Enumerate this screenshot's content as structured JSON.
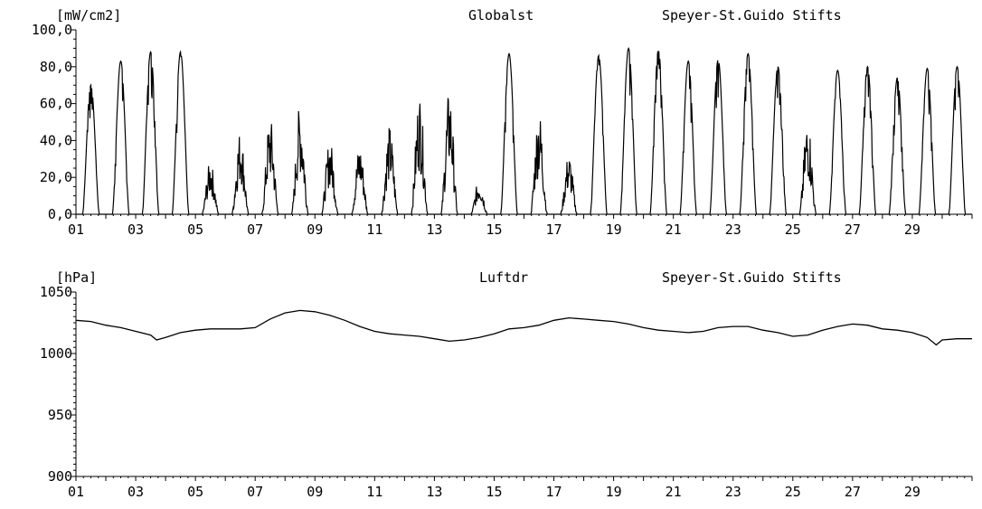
{
  "chart_data": [
    {
      "type": "line",
      "unit": "[mW/cm2]",
      "title": "Globalst",
      "station": "Speyer-St.Guido Stifts",
      "xlim": [
        1,
        31
      ],
      "ylim": [
        0,
        100
      ],
      "yticks": [
        "0,0",
        "20,0",
        "40,0",
        "60,0",
        "80,0",
        "100,0"
      ],
      "xticks": [
        "01",
        "03",
        "05",
        "07",
        "09",
        "11",
        "13",
        "15",
        "17",
        "19",
        "21",
        "23",
        "25",
        "27",
        "29"
      ],
      "daily_peaks": [
        70,
        83,
        88,
        88,
        29,
        46,
        53,
        60,
        41,
        38,
        48,
        66,
        68,
        19,
        87,
        57,
        33,
        86,
        90,
        89,
        83,
        84,
        87,
        80,
        52,
        78,
        80,
        74,
        79,
        80
      ],
      "series": [
        {
          "values": [
            70,
            83,
            88,
            88,
            29,
            46,
            53,
            60,
            41,
            38,
            48,
            66,
            68,
            19,
            87,
            57,
            33,
            86,
            90,
            89,
            83,
            84,
            87,
            80,
            52,
            78,
            80,
            74,
            79,
            80
          ]
        }
      ]
    },
    {
      "type": "line",
      "unit": "[hPa]",
      "title": "Luftdr",
      "station": "Speyer-St.Guido Stifts",
      "xlim": [
        1,
        31
      ],
      "ylim": [
        900,
        1050
      ],
      "yticks": [
        "900",
        "950",
        "1000",
        "1050"
      ],
      "xticks": [
        "01",
        "03",
        "05",
        "07",
        "09",
        "11",
        "13",
        "15",
        "17",
        "19",
        "21",
        "23",
        "25",
        "27",
        "29"
      ],
      "x": [
        1.0,
        1.5,
        2.0,
        2.5,
        3.0,
        3.5,
        3.7,
        4.0,
        4.5,
        5.0,
        5.5,
        6.0,
        6.5,
        7.0,
        7.5,
        8.0,
        8.5,
        9.0,
        9.5,
        10.0,
        10.5,
        11.0,
        11.5,
        12.0,
        12.5,
        13.0,
        13.5,
        14.0,
        14.5,
        15.0,
        15.5,
        16.0,
        16.5,
        17.0,
        17.5,
        18.0,
        18.5,
        19.0,
        19.5,
        20.0,
        20.5,
        21.0,
        21.5,
        22.0,
        22.5,
        23.0,
        23.5,
        24.0,
        24.5,
        25.0,
        25.5,
        26.0,
        26.5,
        27.0,
        27.5,
        28.0,
        28.5,
        29.0,
        29.5,
        29.8,
        30.0,
        30.5,
        31.0
      ],
      "y": [
        1027,
        1026,
        1023,
        1021,
        1018,
        1015,
        1011,
        1013,
        1017,
        1019,
        1020,
        1020,
        1020,
        1021,
        1028,
        1033,
        1035,
        1034,
        1031,
        1027,
        1022,
        1018,
        1016,
        1015,
        1014,
        1012,
        1010,
        1011,
        1013,
        1016,
        1020,
        1021,
        1023,
        1027,
        1029,
        1028,
        1027,
        1026,
        1024,
        1021,
        1019,
        1018,
        1017,
        1018,
        1021,
        1022,
        1022,
        1019,
        1017,
        1014,
        1015,
        1019,
        1022,
        1024,
        1023,
        1020,
        1019,
        1017,
        1013,
        1007,
        1011,
        1012,
        1012
      ]
    }
  ]
}
